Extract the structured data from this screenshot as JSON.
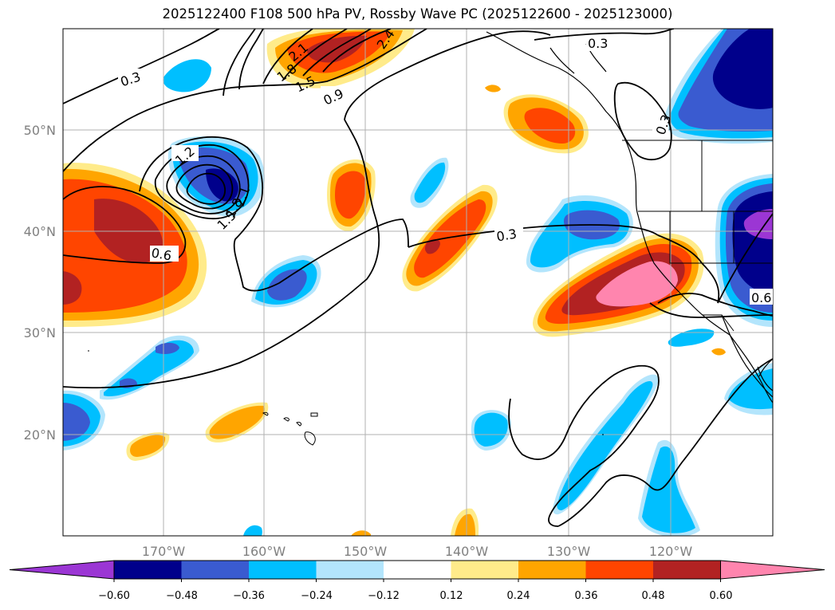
{
  "title": "2025122400 F108 500 hPa PV, Rossby Wave PC (2025122600 - 2025123000)",
  "latitude_labels": [
    "50°N",
    "40°N",
    "30°N",
    "20°N"
  ],
  "longitude_labels": [
    "170°W",
    "160°W",
    "150°W",
    "140°W",
    "130°W",
    "120°W"
  ],
  "contour_labels": [
    "0.3",
    "0.3",
    "0.3",
    "0.3",
    "0.6",
    "0.6",
    "0.9",
    "1.2",
    "1.5",
    "1.8",
    "2.1",
    "2.4",
    "1.5",
    "1.8",
    "2.1"
  ],
  "colorbar": {
    "labels": [
      "−0.60",
      "−0.48",
      "−0.36",
      "−0.24",
      "−0.12",
      "0.12",
      "0.24",
      "0.36",
      "0.48",
      "0.60"
    ],
    "colors": [
      "#9b36d4",
      "#00008b",
      "#3a5bd0",
      "#00bfff",
      "#b3e5fc",
      "#ffffff",
      "#ffeb8a",
      "#ffa500",
      "#ff4500",
      "#b22222",
      "#ff85ae"
    ]
  },
  "colors": {
    "neg_strong": "#00008b",
    "neg_mid": "#3a5bd0",
    "neg_light": "#00bfff",
    "neg_pale": "#b3e5fc",
    "pos_pale": "#ffeb8a",
    "pos_light": "#ffa500",
    "pos_mid": "#ff4500",
    "pos_strong": "#b22222",
    "pos_max": "#ff85ae",
    "grid": "#b0b0b0",
    "contour": "#000000"
  }
}
